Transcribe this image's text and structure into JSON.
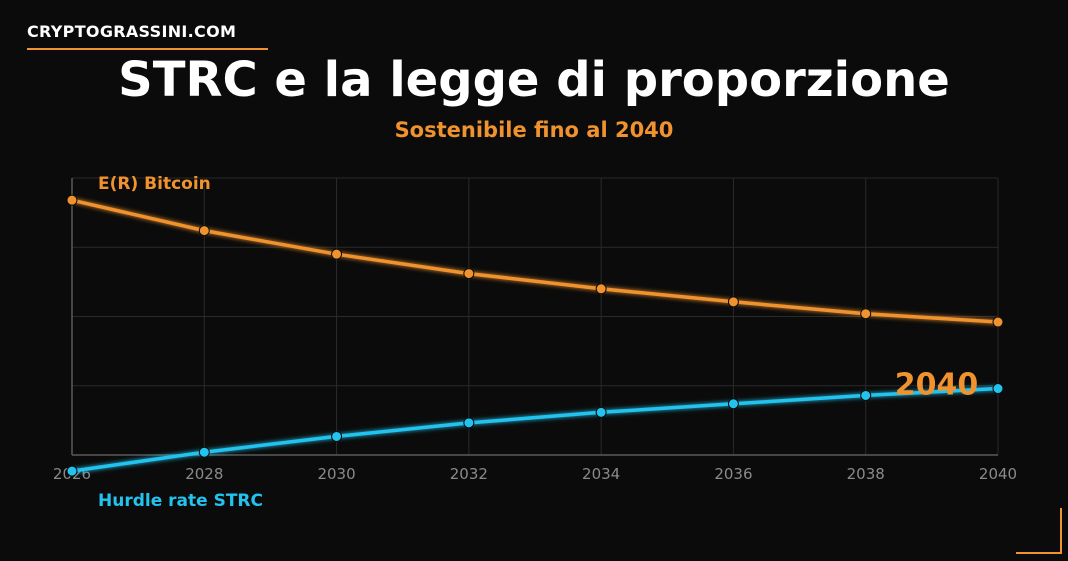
{
  "brand": "CRYPTOGRASSINI.COM",
  "title": "STRC e la legge di proporzione",
  "subtitle": "Sostenibile fino al 2040",
  "colors": {
    "accent": "#f0922e",
    "blue": "#22c3ee",
    "grid": "#2a2a2a",
    "axis": "#5a5a5a",
    "tick": "#8a8a8a"
  },
  "chart_data": {
    "type": "line",
    "x": [
      2026,
      2028,
      2030,
      2032,
      2034,
      2036,
      2038,
      2040
    ],
    "xlim": [
      2026,
      2040
    ],
    "ylim": [
      0,
      100
    ],
    "grid": true,
    "series": [
      {
        "name": "E(R) Bitcoin",
        "color": "#f0922e",
        "values": [
          92.0,
          81.0,
          72.5,
          65.5,
          60.0,
          55.3,
          51.0,
          48.0
        ]
      },
      {
        "name": "Hurdle rate STRC",
        "color": "#22c3ee",
        "values": [
          -5.8,
          1.0,
          6.7,
          11.6,
          15.4,
          18.5,
          21.5,
          24.0
        ]
      }
    ],
    "annotations": [
      {
        "text": "2040",
        "x": 2038.5,
        "y": 25.5
      }
    ]
  }
}
